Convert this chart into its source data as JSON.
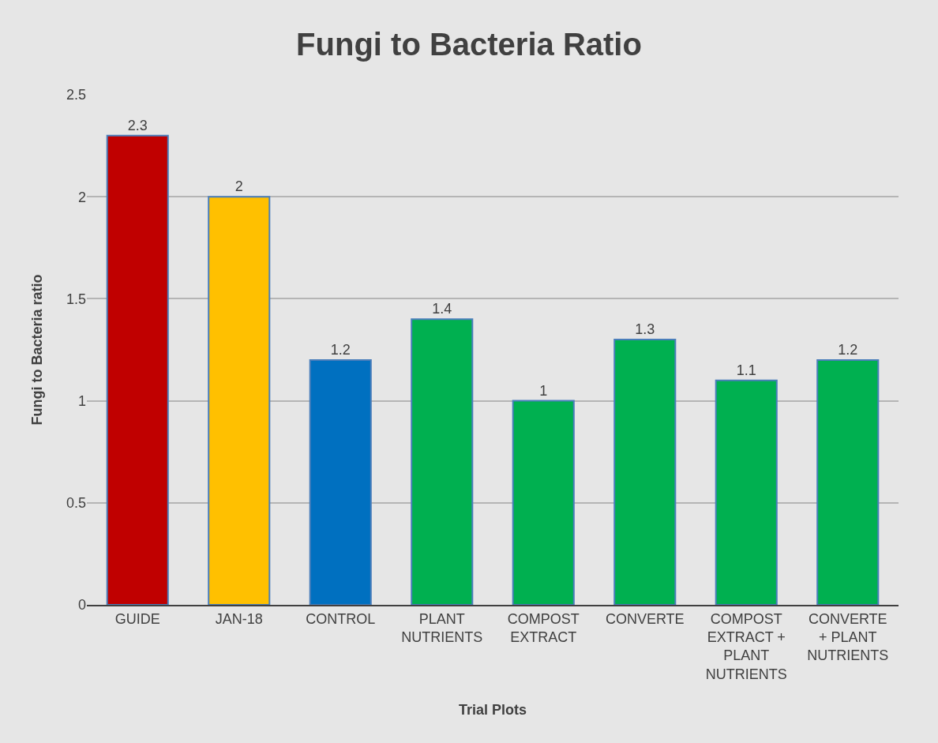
{
  "chart_data": {
    "type": "bar",
    "title": "Fungi to Bacteria Ratio",
    "xlabel": "Trial Plots",
    "ylabel": "Fungi to Bacteria ratio",
    "categories": [
      "GUIDE",
      "JAN-18",
      "CONTROL",
      "PLANT NUTRIENTS",
      "COMPOST EXTRACT",
      "CONVERTE",
      "COMPOST EXTRACT + PLANT NUTRIENTS",
      "CONVERTE + PLANT NUTRIENTS"
    ],
    "values": [
      2.3,
      2,
      1.2,
      1.4,
      1,
      1.3,
      1.1,
      1.2
    ],
    "colors": [
      "#c00000",
      "#ffc000",
      "#0070c0",
      "#00b050",
      "#00b050",
      "#00b050",
      "#00b050",
      "#00b050"
    ],
    "ylim": [
      0,
      2.5
    ],
    "yticks": [
      0,
      0.5,
      1,
      1.5,
      2,
      2.5
    ],
    "grid": "y",
    "data_labels": true
  }
}
